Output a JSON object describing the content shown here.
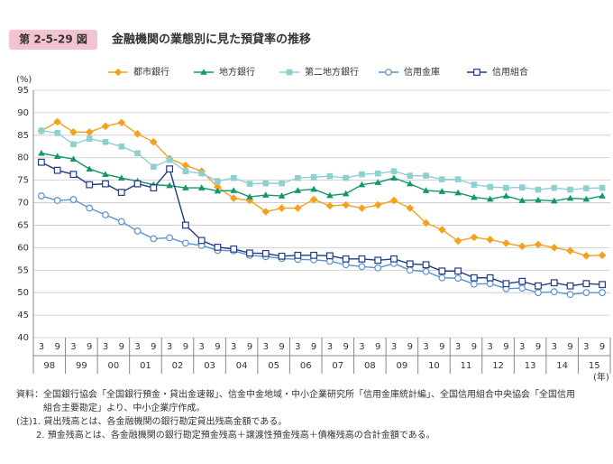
{
  "header": {
    "badge": "第 2-5-29 図",
    "title": "金融機関の業態別に見た預貸率の推移"
  },
  "chart_data": {
    "type": "line",
    "y_unit": "(%)",
    "x_unit": "(年)",
    "categories": [
      "3",
      "9",
      "3",
      "9",
      "3",
      "9",
      "3",
      "9",
      "3",
      "9",
      "3",
      "9",
      "3",
      "9",
      "3",
      "9",
      "3",
      "9",
      "3",
      "9",
      "3",
      "9",
      "3",
      "9",
      "3",
      "9",
      "3",
      "9",
      "3",
      "9",
      "3",
      "9",
      "3",
      "9",
      "3",
      "9"
    ],
    "x_groups": [
      "98",
      "99",
      "00",
      "01",
      "02",
      "03",
      "04",
      "05",
      "06",
      "07",
      "08",
      "09",
      "10",
      "11",
      "12",
      "13",
      "14",
      "15"
    ],
    "ylim": [
      40,
      95
    ],
    "yticks": [
      40,
      45,
      50,
      55,
      60,
      65,
      70,
      75,
      80,
      85,
      90,
      95
    ],
    "grid": true,
    "series": [
      {
        "name": "都市銀行",
        "color": "#f4a11e",
        "marker": "diamond",
        "values": [
          86,
          88,
          85.7,
          85.7,
          87,
          87.8,
          85.3,
          83.5,
          79.8,
          78.3,
          77,
          73.5,
          71,
          70.5,
          68,
          68.8,
          68.8,
          70.7,
          69.3,
          69.5,
          68.8,
          69.5,
          70.5,
          68.8,
          65.5,
          64,
          61.5,
          62.3,
          61.8,
          61,
          60.3,
          60.7,
          60,
          59.3,
          58.2,
          58.3
        ]
      },
      {
        "name": "地方銀行",
        "color": "#13966a",
        "marker": "triangle",
        "values": [
          81,
          80.3,
          79.7,
          77.5,
          76.3,
          75.5,
          74.8,
          74,
          73.8,
          73.3,
          73.3,
          72.6,
          72.7,
          71.3,
          71.7,
          71.5,
          72.7,
          73,
          71.6,
          72,
          74,
          74.5,
          75.5,
          74.2,
          72.7,
          72.5,
          72.2,
          71.2,
          70.8,
          71.5,
          70.5,
          70.6,
          70.4,
          71,
          70.8,
          71.5
        ]
      },
      {
        "name": "第二地方銀行",
        "color": "#8ecfd1",
        "marker": "square",
        "values": [
          86,
          85.5,
          83,
          84.2,
          83.5,
          82.5,
          81,
          78,
          79.5,
          77,
          76.5,
          74.8,
          75.5,
          74.2,
          74.3,
          74.3,
          75.5,
          75.7,
          75.9,
          75.5,
          76.3,
          76.5,
          77,
          76,
          76,
          75.2,
          75.2,
          74,
          73.5,
          73.3,
          73.4,
          72.9,
          73.3,
          72.9,
          73.2,
          73.3
        ]
      },
      {
        "name": "信用金庫",
        "color": "#5a93cf",
        "marker": "circle",
        "values": [
          71.5,
          70.5,
          70.7,
          68.8,
          67.3,
          65.8,
          63.7,
          62,
          62.2,
          61,
          60.5,
          59.4,
          59.3,
          58.3,
          58,
          57.6,
          57.4,
          57.3,
          57,
          56.2,
          55.8,
          55.5,
          56.5,
          55,
          54.7,
          53.3,
          53.2,
          51.9,
          52,
          50.9,
          51,
          50,
          50.2,
          49.6,
          50,
          50
        ]
      },
      {
        "name": "信用組合",
        "color": "#1f3c88",
        "marker": "square-open",
        "values": [
          79,
          77.2,
          76.3,
          74,
          74.2,
          72.3,
          74.2,
          73.3,
          77.5,
          65,
          61.6,
          60.1,
          59.7,
          58.8,
          58.7,
          58.1,
          58.3,
          58.3,
          58.2,
          57.5,
          57.5,
          57.2,
          57.5,
          56.4,
          56.2,
          54.8,
          54.8,
          53.3,
          53.3,
          52,
          52.5,
          51.5,
          52.2,
          51.5,
          52,
          51.8
        ]
      }
    ]
  },
  "notes": [
    "資料：全国銀行協会「全国銀行預金・貸出金速報」、信金中金地域・中小企業研究所「信用金庫統計編」、全国信用組合中央協会「全国信用",
    "組合主要勘定」より、中小企業庁作成。",
    "(注)1. 貸出残高とは、各金融機関の銀行勘定貸出残高金額である。",
    "2. 預金残高とは、各金融機関の銀行勘定預金残高＋譲渡性預金残高＋債権残高の合計金額である。"
  ]
}
